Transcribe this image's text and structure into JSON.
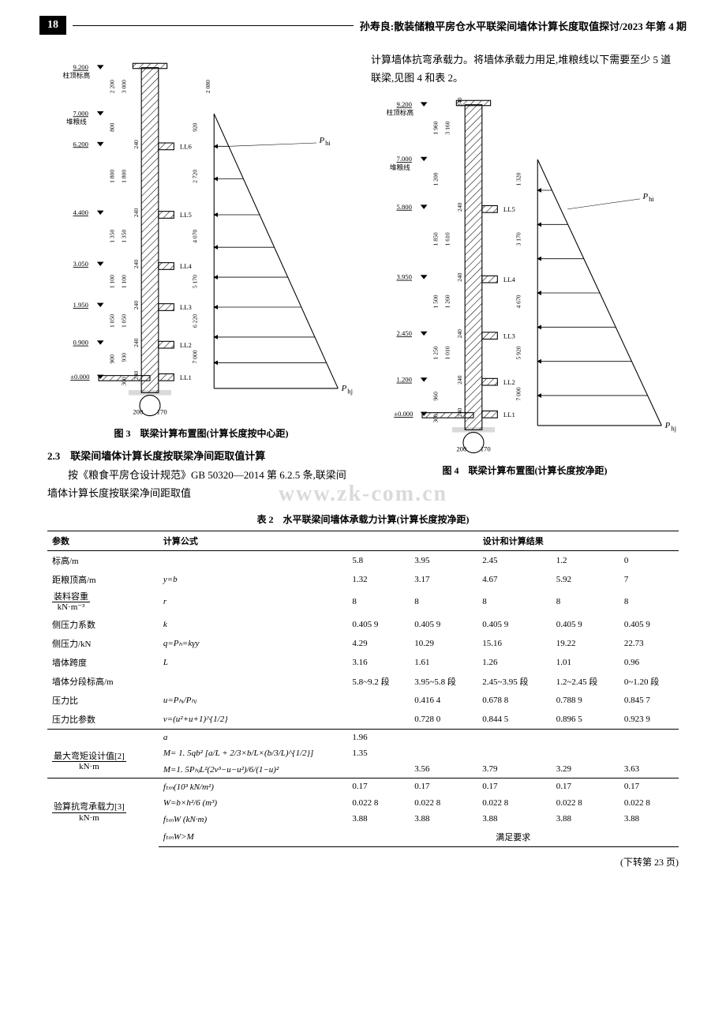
{
  "header": {
    "page_number": "18",
    "citation": "孙寿良:散装储粮平房仓水平联梁间墙体计算长度取值探讨/2023 年第 4 期"
  },
  "left_column": {
    "figure3": {
      "caption": "图 3　联梁计算布置图(计算长度按中心距)",
      "top_label": "9.200",
      "top_label2": "柱顶标高",
      "grain_label": "7.000",
      "grain_label2": "堆粮线",
      "p_hi": "P",
      "p_hi_sub": "hi",
      "p_hj": "P",
      "p_hj_sub": "hj",
      "elevations": [
        "9.200",
        "7.000",
        "6.200",
        "4.400",
        "3.050",
        "1.950",
        "0.900",
        "±0.000"
      ],
      "ll_labels": [
        "LL6",
        "LL5",
        "LL4",
        "LL3",
        "LL2",
        "LL1"
      ],
      "dim_left": [
        "2 200",
        "800",
        "1 800",
        "1 350",
        "1 100",
        "1 050",
        "900"
      ],
      "dim_left2": [
        "3 000",
        "1 800",
        "1 350",
        "1 100",
        "1 050",
        "930",
        "300"
      ],
      "dim_left3": [
        "240",
        "240",
        "240",
        "240",
        "240",
        "240"
      ],
      "dim_right_h": [
        "920",
        "2 720",
        "4 070",
        "5 170",
        "6 220",
        "7 000"
      ],
      "dim_right_h2": [
        "2 080"
      ],
      "bottom_dims": [
        "200",
        "170"
      ]
    },
    "section": {
      "number": "2.3",
      "title": "联梁间墙体计算长度按联梁净间距取值计算",
      "para": "按《粮食平房仓设计规范》GB 50320—2014 第 6.2.5 条,联梁间墙体计算长度按联梁净间距取值"
    }
  },
  "right_column": {
    "intro_para": "计算墙体抗弯承载力。将墙体承载力用足,堆粮线以下需要至少 5 道联梁,见图 4 和表 2。",
    "figure4": {
      "caption": "图 4　联梁计算布置图(计算长度按净距)",
      "top_label": "9.200",
      "top_label2": "柱顶标高",
      "grain_label": "7.000",
      "grain_label2": "堆粮线",
      "p_hi": "P",
      "p_hi_sub": "hi",
      "p_hj": "P",
      "p_hj_sub": "hj",
      "elevations": [
        "9.200",
        "7.000",
        "5.800",
        "3.950",
        "2.450",
        "1.200",
        "±0.000"
      ],
      "ll_labels": [
        "LL5",
        "LL4",
        "LL3",
        "LL2",
        "LL1"
      ],
      "dim_left": [
        "1 960",
        "1 200",
        "1 850",
        "1 500",
        "1 250",
        "960",
        "300"
      ],
      "dim_left2": [
        "3 160",
        "1 610",
        "1 260",
        "1 010"
      ],
      "dim_left3": [
        "240",
        "240",
        "240",
        "240",
        "240",
        "240"
      ],
      "dim_right_h": [
        "1 320",
        "3 170",
        "4 670",
        "5 920",
        "7 000"
      ],
      "bottom_dims": [
        "200",
        "170"
      ]
    }
  },
  "table2": {
    "caption": "表 2　水平联梁间墙体承载力计算(计算长度按净距)",
    "columns": [
      "参数",
      "计算公式",
      "设计和计算结果"
    ],
    "rows": [
      {
        "param": "标高/m",
        "formula": "",
        "v": [
          "5.8",
          "3.95",
          "2.45",
          "1.2",
          "0"
        ]
      },
      {
        "param": "距粮顶高/m",
        "formula": "y=b",
        "v": [
          "1.32",
          "3.17",
          "4.67",
          "5.92",
          "7"
        ]
      },
      {
        "param_frac": {
          "num": "装料容重",
          "den": "kN·m⁻³"
        },
        "formula": "r",
        "v": [
          "8",
          "8",
          "8",
          "8",
          "8"
        ]
      },
      {
        "param": "侧压力系数",
        "formula": "k",
        "v": [
          "0.405 9",
          "0.405 9",
          "0.405 9",
          "0.405 9",
          "0.405 9"
        ]
      },
      {
        "param": "侧压力/kN",
        "formula": "q=Pₕ=kγy",
        "v": [
          "4.29",
          "10.29",
          "15.16",
          "19.22",
          "22.73"
        ]
      },
      {
        "param": "墙体跨度",
        "formula": "L",
        "v": [
          "3.16",
          "1.61",
          "1.26",
          "1.01",
          "0.96"
        ]
      },
      {
        "param": "墙体分段标高/m",
        "formula": "",
        "v": [
          "5.8~9.2 段",
          "3.95~5.8 段",
          "2.45~3.95 段",
          "1.2~2.45 段",
          "0~1.20 段"
        ]
      },
      {
        "param": "压力比",
        "formula": "u=Pₕᵢ/Pₕⱼ",
        "v": [
          "",
          "0.416 4",
          "0.678 8",
          "0.788 9",
          "0.845 7"
        ]
      },
      {
        "param": "压力比参数",
        "formula": "v=(u²+u+1)^{1/2}",
        "v": [
          "",
          "0.728 0",
          "0.844 5",
          "0.896 5",
          "0.923 9"
        ]
      },
      {
        "param": "",
        "formula": "a",
        "v": [
          "1.96",
          "",
          "",
          "",
          ""
        ],
        "sep": true
      },
      {
        "param_frac": {
          "num": "最大弯矩设计值[2]",
          "den": "kN·m"
        },
        "rowspan": 2,
        "formula": "M= 1. 5qb² [a/L + 2/3×b/L×(b/3/L)^{1/2}]",
        "v": [
          "1.35",
          "",
          "",
          "",
          ""
        ]
      },
      {
        "formula": "M=1. 5PₕⱼL²(2v³−u−u²)/6/(1−u)²",
        "v": [
          "",
          "3.56",
          "3.79",
          "3.29",
          "3.63"
        ]
      },
      {
        "param_frac": {
          "num": "验算抗弯承载力[3]",
          "den": "kN·m"
        },
        "rowspan": 4,
        "formula": "fₜₘ(10³ kN/m²)",
        "v": [
          "0.17",
          "0.17",
          "0.17",
          "0.17",
          "0.17"
        ],
        "sep": true
      },
      {
        "formula": "W=b×h²/6 (m³)",
        "v": [
          "0.022 8",
          "0.022 8",
          "0.022 8",
          "0.022 8",
          "0.022 8"
        ]
      },
      {
        "formula": "fₜₘW (kN·m)",
        "v": [
          "3.88",
          "3.88",
          "3.88",
          "3.88",
          "3.88"
        ]
      },
      {
        "formula": "fₜₘW>M",
        "v_merged": "满足要求"
      }
    ]
  },
  "footnote": "(下转第 23 页)",
  "watermark": "www.zk-com.cn",
  "colors": {
    "text": "#000000",
    "bg": "#ffffff",
    "hatch": "#000000"
  }
}
